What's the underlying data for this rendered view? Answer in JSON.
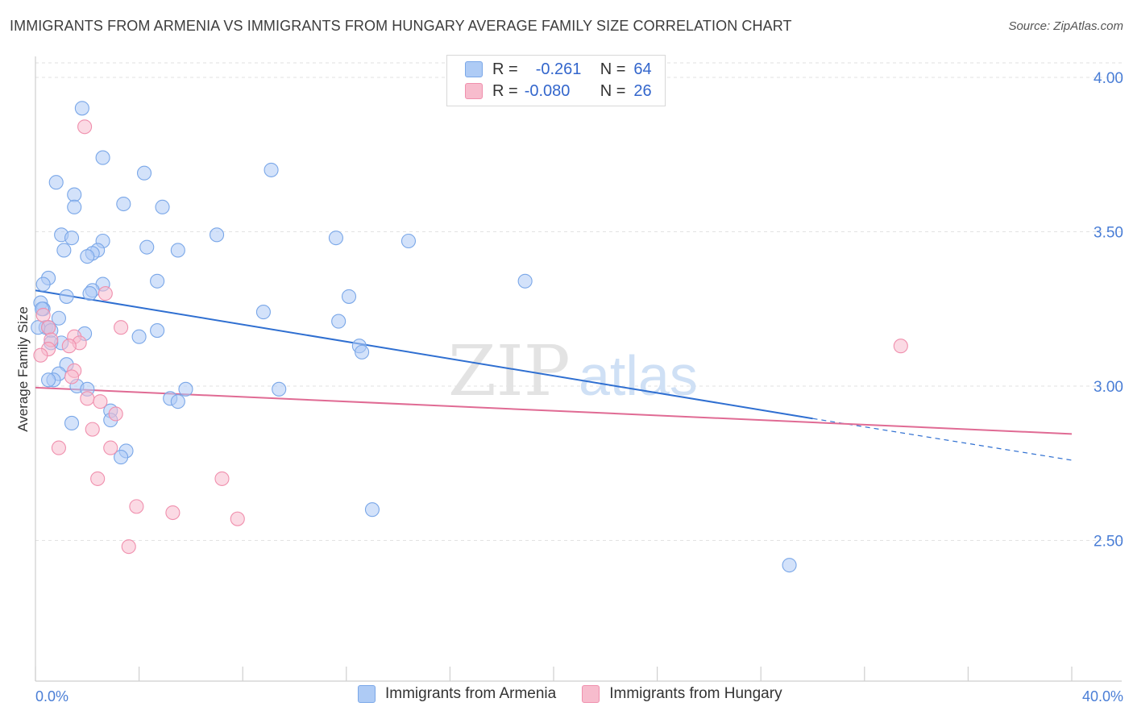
{
  "title": "IMMIGRANTS FROM ARMENIA VS IMMIGRANTS FROM HUNGARY AVERAGE FAMILY SIZE CORRELATION CHART",
  "source": "Source: ZipAtlas.com",
  "watermark": {
    "zip": "ZIP",
    "atlas": "atlas"
  },
  "legend_top": [
    {
      "r_label": "R =",
      "r_value": "-0.261",
      "n_label": "N =",
      "n_value": "64",
      "color": "#aecbf5"
    },
    {
      "r_label": "R =",
      "r_value": "-0.080",
      "n_label": "N =",
      "n_value": "26",
      "color": "#f7bccd"
    }
  ],
  "chart_data": {
    "type": "scatter",
    "title": "IMMIGRANTS FROM ARMENIA VS IMMIGRANTS FROM HUNGARY AVERAGE FAMILY SIZE CORRELATION CHART",
    "xlabel": "",
    "ylabel": "Average Family Size",
    "xlim": [
      0,
      40
    ],
    "ylim": [
      2.1,
      4.05
    ],
    "x_tick_labels": [
      "0.0%",
      "40.0%"
    ],
    "y_ticks": [
      2.5,
      3.0,
      3.5,
      4.0
    ],
    "y_tick_labels": [
      "2.50",
      "3.00",
      "3.50",
      "4.00"
    ],
    "grid": true,
    "legend_position": "bottom",
    "series": [
      {
        "name": "Immigrants from Armenia",
        "color": "#7aa7e8",
        "fill": "#aecbf5",
        "line_color": "#2f6fd1",
        "trend": {
          "x0": 0,
          "y0": 3.31,
          "x1": 30.0,
          "y1": 2.895,
          "dash_x1": 40.0,
          "dash_y1": 2.76
        },
        "points": [
          [
            1.8,
            3.9
          ],
          [
            2.6,
            3.74
          ],
          [
            4.2,
            3.69
          ],
          [
            9.1,
            3.7
          ],
          [
            0.8,
            3.66
          ],
          [
            1.5,
            3.62
          ],
          [
            3.4,
            3.59
          ],
          [
            4.9,
            3.58
          ],
          [
            1.5,
            3.58
          ],
          [
            1.0,
            3.49
          ],
          [
            1.4,
            3.48
          ],
          [
            7.0,
            3.49
          ],
          [
            11.6,
            3.48
          ],
          [
            14.4,
            3.47
          ],
          [
            2.6,
            3.47
          ],
          [
            4.3,
            3.45
          ],
          [
            1.1,
            3.44
          ],
          [
            2.4,
            3.44
          ],
          [
            5.5,
            3.44
          ],
          [
            2.2,
            3.43
          ],
          [
            2.0,
            3.42
          ],
          [
            0.5,
            3.35
          ],
          [
            4.7,
            3.34
          ],
          [
            18.9,
            3.34
          ],
          [
            2.6,
            3.33
          ],
          [
            0.3,
            3.33
          ],
          [
            2.2,
            3.31
          ],
          [
            2.1,
            3.3
          ],
          [
            1.2,
            3.29
          ],
          [
            12.1,
            3.29
          ],
          [
            0.2,
            3.27
          ],
          [
            0.3,
            3.25
          ],
          [
            0.25,
            3.25
          ],
          [
            8.8,
            3.24
          ],
          [
            0.9,
            3.22
          ],
          [
            11.7,
            3.21
          ],
          [
            0.4,
            3.19
          ],
          [
            0.5,
            3.19
          ],
          [
            0.6,
            3.18
          ],
          [
            1.9,
            3.17
          ],
          [
            4.7,
            3.18
          ],
          [
            4.0,
            3.16
          ],
          [
            1.0,
            3.14
          ],
          [
            0.6,
            3.14
          ],
          [
            12.5,
            3.13
          ],
          [
            12.6,
            3.11
          ],
          [
            1.2,
            3.07
          ],
          [
            0.9,
            3.04
          ],
          [
            0.7,
            3.02
          ],
          [
            0.5,
            3.02
          ],
          [
            1.6,
            3.0
          ],
          [
            2.0,
            2.99
          ],
          [
            5.8,
            2.99
          ],
          [
            9.4,
            2.99
          ],
          [
            5.2,
            2.96
          ],
          [
            5.5,
            2.95
          ],
          [
            2.9,
            2.92
          ],
          [
            2.9,
            2.89
          ],
          [
            1.4,
            2.88
          ],
          [
            3.5,
            2.79
          ],
          [
            3.3,
            2.77
          ],
          [
            13.0,
            2.6
          ],
          [
            29.1,
            2.42
          ],
          [
            0.1,
            3.19
          ]
        ]
      },
      {
        "name": "Immigrants from Hungary",
        "color": "#f08fad",
        "fill": "#f7bccd",
        "line_color": "#e06b94",
        "trend": {
          "x0": 0,
          "y0": 2.995,
          "x1": 40.0,
          "y1": 2.845
        },
        "points": [
          [
            1.9,
            3.84
          ],
          [
            2.7,
            3.3
          ],
          [
            0.3,
            3.23
          ],
          [
            0.5,
            3.19
          ],
          [
            3.3,
            3.19
          ],
          [
            1.5,
            3.16
          ],
          [
            0.6,
            3.15
          ],
          [
            1.7,
            3.14
          ],
          [
            1.3,
            3.13
          ],
          [
            0.5,
            3.12
          ],
          [
            0.2,
            3.1
          ],
          [
            33.4,
            3.13
          ],
          [
            1.5,
            3.05
          ],
          [
            1.4,
            3.03
          ],
          [
            2.0,
            2.96
          ],
          [
            2.5,
            2.95
          ],
          [
            3.1,
            2.91
          ],
          [
            2.2,
            2.86
          ],
          [
            0.9,
            2.8
          ],
          [
            2.9,
            2.8
          ],
          [
            2.4,
            2.7
          ],
          [
            7.2,
            2.7
          ],
          [
            3.9,
            2.61
          ],
          [
            5.3,
            2.59
          ],
          [
            7.8,
            2.57
          ],
          [
            3.6,
            2.48
          ]
        ]
      }
    ]
  }
}
